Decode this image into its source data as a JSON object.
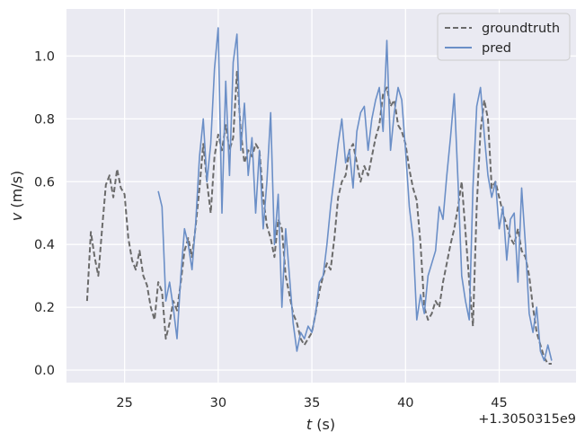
{
  "chart_data": {
    "type": "line",
    "xlabel_var": "t",
    "xlabel_unit": " (s)",
    "ylabel_var": "v",
    "ylabel_unit": " (m/s)",
    "x_offset_label": "+1.3050315e9",
    "xlim": [
      21.9,
      49.1
    ],
    "ylim": [
      -0.04,
      1.15
    ],
    "x_ticks": [
      25,
      30,
      35,
      40,
      45
    ],
    "x_tick_labels": [
      "25",
      "30",
      "35",
      "40",
      "45"
    ],
    "y_ticks": [
      0.0,
      0.2,
      0.4,
      0.6,
      0.8,
      1.0
    ],
    "y_tick_labels": [
      "0.0",
      "0.2",
      "0.4",
      "0.6",
      "0.8",
      "1.0"
    ],
    "grid": true,
    "legend_position": "top-right",
    "colors": {
      "background": "#eaeaf2",
      "grid": "#ffffff",
      "groundtruth": "#6b6b6b",
      "pred": "#6b8fc7"
    },
    "series": [
      {
        "name": "groundtruth",
        "style": "dashed",
        "x": [
          23.0,
          23.2,
          23.4,
          23.6,
          23.8,
          24.0,
          24.2,
          24.4,
          24.6,
          24.8,
          25.0,
          25.2,
          25.4,
          25.6,
          25.8,
          26.0,
          26.2,
          26.4,
          26.6,
          26.8,
          27.0,
          27.2,
          27.4,
          27.6,
          27.8,
          28.0,
          28.2,
          28.4,
          28.6,
          28.8,
          29.0,
          29.2,
          29.4,
          29.6,
          29.8,
          30.0,
          30.2,
          30.4,
          30.6,
          30.8,
          31.0,
          31.2,
          31.4,
          31.6,
          31.8,
          32.0,
          32.2,
          32.4,
          32.6,
          32.8,
          33.0,
          33.2,
          33.4,
          33.6,
          33.8,
          34.0,
          34.2,
          34.4,
          34.6,
          34.8,
          35.0,
          35.2,
          35.4,
          35.6,
          35.8,
          36.0,
          36.2,
          36.4,
          36.6,
          36.8,
          37.0,
          37.2,
          37.4,
          37.6,
          37.8,
          38.0,
          38.2,
          38.4,
          38.6,
          38.8,
          39.0,
          39.2,
          39.4,
          39.6,
          39.8,
          40.0,
          40.2,
          40.4,
          40.6,
          40.8,
          41.0,
          41.2,
          41.4,
          41.6,
          41.8,
          42.0,
          42.2,
          42.4,
          42.6,
          42.8,
          43.0,
          43.2,
          43.4,
          43.6,
          43.8,
          44.0,
          44.2,
          44.4,
          44.6,
          44.8,
          45.0,
          45.2,
          45.4,
          45.6,
          45.8,
          46.0,
          46.2,
          46.4,
          46.6,
          46.8,
          47.0,
          47.2,
          47.4,
          47.6,
          47.8
        ],
        "y": [
          0.22,
          0.44,
          0.36,
          0.3,
          0.45,
          0.59,
          0.62,
          0.55,
          0.64,
          0.58,
          0.56,
          0.42,
          0.35,
          0.32,
          0.38,
          0.3,
          0.27,
          0.2,
          0.16,
          0.28,
          0.25,
          0.1,
          0.15,
          0.22,
          0.19,
          0.28,
          0.38,
          0.42,
          0.36,
          0.46,
          0.58,
          0.72,
          0.6,
          0.5,
          0.68,
          0.75,
          0.7,
          0.78,
          0.7,
          0.74,
          0.95,
          0.76,
          0.66,
          0.7,
          0.68,
          0.72,
          0.7,
          0.55,
          0.46,
          0.42,
          0.36,
          0.48,
          0.45,
          0.3,
          0.24,
          0.18,
          0.15,
          0.1,
          0.08,
          0.1,
          0.12,
          0.18,
          0.25,
          0.3,
          0.34,
          0.32,
          0.42,
          0.55,
          0.6,
          0.62,
          0.7,
          0.72,
          0.66,
          0.6,
          0.65,
          0.62,
          0.68,
          0.74,
          0.78,
          0.88,
          0.9,
          0.84,
          0.86,
          0.78,
          0.76,
          0.72,
          0.64,
          0.58,
          0.54,
          0.4,
          0.2,
          0.16,
          0.18,
          0.22,
          0.2,
          0.28,
          0.34,
          0.4,
          0.45,
          0.52,
          0.6,
          0.44,
          0.28,
          0.14,
          0.52,
          0.76,
          0.86,
          0.8,
          0.58,
          0.6,
          0.55,
          0.5,
          0.46,
          0.42,
          0.4,
          0.45,
          0.38,
          0.36,
          0.3,
          0.2,
          0.12,
          0.08,
          0.04,
          0.02,
          0.02
        ]
      },
      {
        "name": "pred",
        "style": "solid",
        "x": [
          26.8,
          27.0,
          27.2,
          27.4,
          27.6,
          27.8,
          28.0,
          28.2,
          28.4,
          28.6,
          28.8,
          29.0,
          29.2,
          29.4,
          29.6,
          29.8,
          30.0,
          30.2,
          30.4,
          30.6,
          30.8,
          31.0,
          31.2,
          31.4,
          31.6,
          31.8,
          32.0,
          32.2,
          32.4,
          32.6,
          32.8,
          33.0,
          33.2,
          33.4,
          33.6,
          33.8,
          34.0,
          34.2,
          34.4,
          34.6,
          34.8,
          35.0,
          35.2,
          35.4,
          35.6,
          35.8,
          36.0,
          36.2,
          36.4,
          36.6,
          36.8,
          37.0,
          37.2,
          37.4,
          37.6,
          37.8,
          38.0,
          38.2,
          38.4,
          38.6,
          38.8,
          39.0,
          39.2,
          39.4,
          39.6,
          39.8,
          40.0,
          40.2,
          40.4,
          40.6,
          40.8,
          41.0,
          41.2,
          41.4,
          41.6,
          41.8,
          42.0,
          42.2,
          42.4,
          42.6,
          42.8,
          43.0,
          43.2,
          43.4,
          43.6,
          43.8,
          44.0,
          44.2,
          44.4,
          44.6,
          44.8,
          45.0,
          45.2,
          45.4,
          45.6,
          45.8,
          46.0,
          46.2,
          46.4,
          46.6,
          46.8,
          47.0,
          47.2,
          47.4,
          47.6,
          47.8
        ],
        "y": [
          0.57,
          0.52,
          0.22,
          0.28,
          0.2,
          0.1,
          0.3,
          0.45,
          0.4,
          0.32,
          0.47,
          0.68,
          0.8,
          0.6,
          0.72,
          0.96,
          1.09,
          0.5,
          0.92,
          0.62,
          0.98,
          1.07,
          0.7,
          0.85,
          0.62,
          0.74,
          0.5,
          0.7,
          0.45,
          0.6,
          0.82,
          0.4,
          0.56,
          0.2,
          0.45,
          0.3,
          0.15,
          0.06,
          0.12,
          0.1,
          0.14,
          0.12,
          0.18,
          0.28,
          0.3,
          0.4,
          0.52,
          0.62,
          0.72,
          0.8,
          0.66,
          0.7,
          0.58,
          0.76,
          0.82,
          0.84,
          0.7,
          0.8,
          0.86,
          0.9,
          0.76,
          1.05,
          0.7,
          0.82,
          0.9,
          0.86,
          0.7,
          0.52,
          0.42,
          0.16,
          0.24,
          0.18,
          0.3,
          0.34,
          0.38,
          0.52,
          0.48,
          0.62,
          0.74,
          0.88,
          0.6,
          0.3,
          0.22,
          0.16,
          0.58,
          0.84,
          0.9,
          0.75,
          0.62,
          0.55,
          0.6,
          0.45,
          0.52,
          0.35,
          0.48,
          0.5,
          0.28,
          0.58,
          0.4,
          0.18,
          0.12,
          0.2,
          0.06,
          0.03,
          0.08,
          0.03
        ]
      }
    ]
  }
}
